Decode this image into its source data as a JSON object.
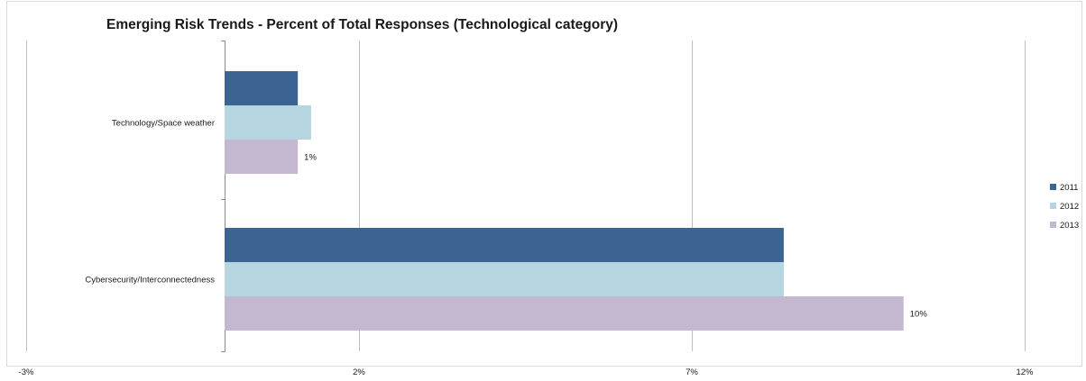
{
  "chart_data": {
    "type": "bar",
    "orientation": "horizontal",
    "title": "Emerging Risk Trends - Percent of Total Responses (Technological category)",
    "categories": [
      "Technology/Space weather",
      "Cybersecurity/Interconnectedness"
    ],
    "series": [
      {
        "name": "2011",
        "color": "#3b6493",
        "values": [
          1.1,
          8.4
        ]
      },
      {
        "name": "2012",
        "color": "#b5d5e0",
        "values": [
          1.3,
          8.4
        ]
      },
      {
        "name": "2013",
        "color": "#c3b8d0",
        "values": [
          1.1,
          10.2
        ]
      }
    ],
    "data_labels": [
      {
        "series": "2013",
        "category": "Technology/Space weather",
        "text": "1%"
      },
      {
        "series": "2013",
        "category": "Cybersecurity/Interconnectedness",
        "text": "10%"
      }
    ],
    "x_ticks": [
      "-3%",
      "2%",
      "7%",
      "12%"
    ],
    "xlim": [
      -3,
      12
    ],
    "grid": true,
    "legend_position": "right"
  }
}
